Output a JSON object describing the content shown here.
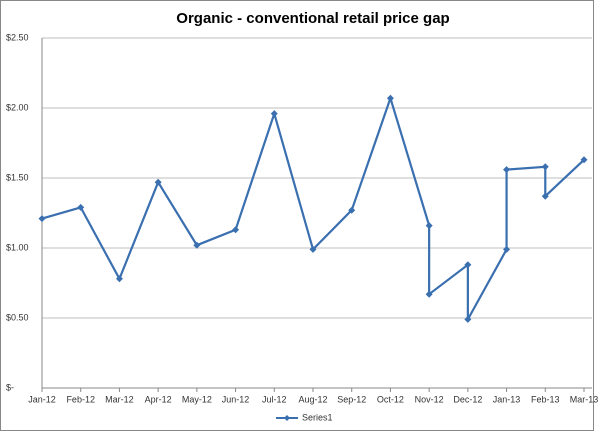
{
  "chart_data": {
    "type": "line",
    "title": "Organic - conventional  retail price gap",
    "categories": [
      "Jan-12",
      "Feb-12",
      "Mar-12",
      "Apr-12",
      "May-12",
      "Jun-12",
      "Jul-12",
      "Aug-12",
      "Sep-12",
      "Oct-12",
      "Nov-12",
      "Dec-12",
      "Jan-13",
      "Feb-13",
      "Mar-13"
    ],
    "x": [
      "Jan-12",
      "Feb-12",
      "Mar-12",
      "Apr-12",
      "May-12",
      "Jun-12",
      "Jul-12",
      "Aug-12",
      "Sep-12",
      "Oct-12",
      "Nov-12",
      "Nov-12",
      "Dec-12",
      "Dec-12",
      "Jan-13",
      "Jan-13",
      "Feb-13",
      "Feb-13",
      "Mar-13"
    ],
    "series": [
      {
        "name": "Series1",
        "color": "#3a6fb0",
        "values": [
          1.21,
          1.29,
          0.78,
          1.47,
          1.02,
          1.13,
          1.96,
          0.99,
          1.27,
          2.07,
          1.16,
          0.67,
          0.88,
          0.49,
          0.99,
          1.56,
          1.58,
          1.37,
          1.63
        ]
      }
    ],
    "ylim": [
      0,
      2.5
    ],
    "yticks": [
      {
        "value": 0,
        "label": "$-"
      },
      {
        "value": 0.5,
        "label": "$0.50"
      },
      {
        "value": 1,
        "label": "$1.00"
      },
      {
        "value": 1.5,
        "label": "$1.50"
      },
      {
        "value": 2,
        "label": "$2.00"
      },
      {
        "value": 2.5,
        "label": "$2.50"
      }
    ],
    "grid": true,
    "legend": "bottom"
  }
}
